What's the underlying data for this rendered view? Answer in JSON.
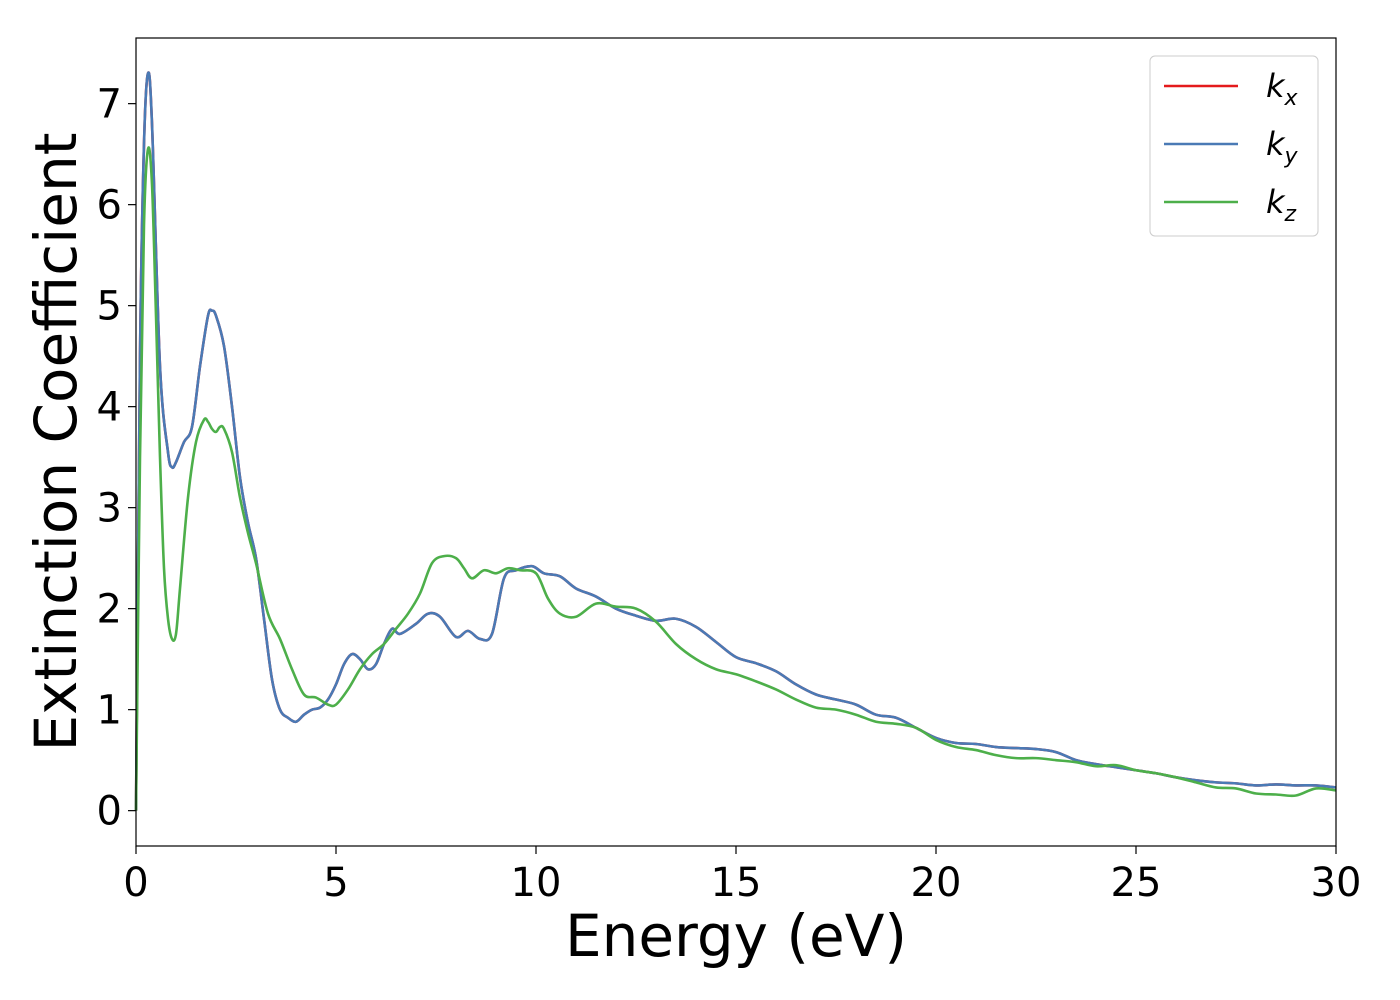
{
  "chart_data": {
    "type": "line",
    "title": "",
    "xlabel": "Energy (eV)",
    "ylabel": "Extinction Coefficient",
    "xlim": [
      0,
      30
    ],
    "ylim": [
      -0.35,
      7.65
    ],
    "xticks": [
      "0",
      "5",
      "10",
      "15",
      "20",
      "25",
      "30"
    ],
    "yticks": [
      "0",
      "1",
      "2",
      "3",
      "4",
      "5",
      "6",
      "7"
    ],
    "grid": false,
    "legend_position": "top-right",
    "series": [
      {
        "name": "k_x",
        "label_base": "k",
        "label_sub": "x",
        "color": "#e41a1c",
        "x": [
          0,
          0.1,
          0.2,
          0.3,
          0.4,
          0.6,
          0.8,
          0.9,
          1.0,
          1.2,
          1.4,
          1.6,
          1.8,
          1.9,
          2.0,
          2.2,
          2.4,
          2.6,
          2.8,
          3.0,
          3.2,
          3.4,
          3.6,
          3.8,
          4.0,
          4.2,
          4.4,
          4.6,
          4.8,
          5.0,
          5.2,
          5.4,
          5.6,
          5.8,
          6.0,
          6.2,
          6.4,
          6.6,
          7.0,
          7.3,
          7.6,
          8.0,
          8.3,
          8.6,
          8.9,
          9.2,
          9.5,
          9.9,
          10.2,
          10.6,
          11.0,
          11.5,
          12.0,
          12.5,
          13.0,
          13.5,
          14.0,
          14.5,
          15.0,
          15.5,
          16.0,
          16.5,
          17.0,
          17.5,
          18.0,
          18.5,
          19.0,
          19.5,
          20.0,
          20.5,
          21.0,
          21.5,
          22.0,
          22.5,
          23.0,
          23.5,
          24.0,
          24.5,
          25.0,
          25.5,
          26.0,
          26.5,
          27.0,
          27.5,
          28.0,
          28.5,
          29.0,
          29.5,
          30.0
        ],
        "y": [
          0,
          4.5,
          6.6,
          7.3,
          6.8,
          4.4,
          3.55,
          3.4,
          3.45,
          3.65,
          3.8,
          4.4,
          4.9,
          4.95,
          4.9,
          4.6,
          4.0,
          3.3,
          2.85,
          2.5,
          1.9,
          1.3,
          1.0,
          0.92,
          0.88,
          0.95,
          1.0,
          1.02,
          1.1,
          1.25,
          1.45,
          1.55,
          1.5,
          1.4,
          1.45,
          1.65,
          1.8,
          1.75,
          1.85,
          1.95,
          1.92,
          1.72,
          1.78,
          1.7,
          1.75,
          2.3,
          2.38,
          2.42,
          2.35,
          2.32,
          2.2,
          2.12,
          2.0,
          1.93,
          1.88,
          1.9,
          1.82,
          1.67,
          1.52,
          1.46,
          1.38,
          1.25,
          1.15,
          1.1,
          1.05,
          0.95,
          0.92,
          0.82,
          0.72,
          0.67,
          0.66,
          0.63,
          0.62,
          0.61,
          0.58,
          0.5,
          0.46,
          0.43,
          0.4,
          0.37,
          0.33,
          0.3,
          0.28,
          0.27,
          0.25,
          0.26,
          0.25,
          0.25,
          0.23
        ]
      },
      {
        "name": "k_y",
        "label_base": "k",
        "label_sub": "y",
        "color": "#4a7ab5",
        "x": [
          0,
          0.1,
          0.2,
          0.3,
          0.4,
          0.6,
          0.8,
          0.9,
          1.0,
          1.2,
          1.4,
          1.6,
          1.8,
          1.9,
          2.0,
          2.2,
          2.4,
          2.6,
          2.8,
          3.0,
          3.2,
          3.4,
          3.6,
          3.8,
          4.0,
          4.2,
          4.4,
          4.6,
          4.8,
          5.0,
          5.2,
          5.4,
          5.6,
          5.8,
          6.0,
          6.2,
          6.4,
          6.6,
          7.0,
          7.3,
          7.6,
          8.0,
          8.3,
          8.6,
          8.9,
          9.2,
          9.5,
          9.9,
          10.2,
          10.6,
          11.0,
          11.5,
          12.0,
          12.5,
          13.0,
          13.5,
          14.0,
          14.5,
          15.0,
          15.5,
          16.0,
          16.5,
          17.0,
          17.5,
          18.0,
          18.5,
          19.0,
          19.5,
          20.0,
          20.5,
          21.0,
          21.5,
          22.0,
          22.5,
          23.0,
          23.5,
          24.0,
          24.5,
          25.0,
          25.5,
          26.0,
          26.5,
          27.0,
          27.5,
          28.0,
          28.5,
          29.0,
          29.5,
          30.0
        ],
        "y": [
          0,
          4.5,
          6.6,
          7.3,
          6.8,
          4.4,
          3.55,
          3.4,
          3.45,
          3.65,
          3.8,
          4.4,
          4.9,
          4.95,
          4.9,
          4.6,
          4.0,
          3.3,
          2.85,
          2.5,
          1.9,
          1.3,
          1.0,
          0.92,
          0.88,
          0.95,
          1.0,
          1.02,
          1.1,
          1.25,
          1.45,
          1.55,
          1.5,
          1.4,
          1.45,
          1.65,
          1.8,
          1.75,
          1.85,
          1.95,
          1.92,
          1.72,
          1.78,
          1.7,
          1.75,
          2.3,
          2.38,
          2.42,
          2.35,
          2.32,
          2.2,
          2.12,
          2.0,
          1.93,
          1.88,
          1.9,
          1.82,
          1.67,
          1.52,
          1.46,
          1.38,
          1.25,
          1.15,
          1.1,
          1.05,
          0.95,
          0.92,
          0.82,
          0.72,
          0.67,
          0.66,
          0.63,
          0.62,
          0.61,
          0.58,
          0.5,
          0.46,
          0.43,
          0.4,
          0.37,
          0.33,
          0.3,
          0.28,
          0.27,
          0.25,
          0.26,
          0.25,
          0.25,
          0.23
        ]
      },
      {
        "name": "k_z",
        "label_base": "k",
        "label_sub": "z",
        "color": "#4daf4a",
        "x": [
          0,
          0.1,
          0.2,
          0.3,
          0.4,
          0.5,
          0.6,
          0.7,
          0.8,
          0.9,
          1.0,
          1.1,
          1.3,
          1.5,
          1.7,
          1.8,
          1.9,
          2.0,
          2.1,
          2.2,
          2.4,
          2.6,
          2.8,
          3.0,
          3.3,
          3.6,
          3.9,
          4.2,
          4.5,
          4.8,
          5.0,
          5.3,
          5.6,
          5.9,
          6.2,
          6.5,
          6.8,
          7.1,
          7.4,
          7.7,
          8.0,
          8.2,
          8.4,
          8.7,
          9.0,
          9.3,
          9.6,
          10.0,
          10.3,
          10.6,
          11.0,
          11.5,
          12.0,
          12.5,
          13.0,
          13.5,
          14.0,
          14.5,
          15.0,
          15.5,
          16.0,
          16.5,
          17.0,
          17.5,
          18.0,
          18.5,
          19.0,
          19.5,
          20.0,
          20.5,
          21.0,
          21.5,
          22.0,
          22.5,
          23.0,
          23.5,
          24.0,
          24.5,
          25.0,
          25.5,
          26.0,
          26.5,
          27.0,
          27.5,
          28.0,
          28.5,
          29.0,
          29.5,
          30.0
        ],
        "y": [
          0,
          3.5,
          5.8,
          6.55,
          6.2,
          4.9,
          3.5,
          2.4,
          1.9,
          1.7,
          1.75,
          2.2,
          3.1,
          3.65,
          3.87,
          3.85,
          3.78,
          3.75,
          3.8,
          3.78,
          3.55,
          3.1,
          2.75,
          2.45,
          1.95,
          1.7,
          1.4,
          1.15,
          1.12,
          1.05,
          1.05,
          1.2,
          1.4,
          1.55,
          1.65,
          1.8,
          1.95,
          2.15,
          2.45,
          2.52,
          2.5,
          2.4,
          2.3,
          2.38,
          2.35,
          2.4,
          2.38,
          2.35,
          2.1,
          1.95,
          1.92,
          2.05,
          2.02,
          2.0,
          1.87,
          1.65,
          1.5,
          1.4,
          1.35,
          1.28,
          1.2,
          1.1,
          1.02,
          1.0,
          0.95,
          0.88,
          0.86,
          0.82,
          0.7,
          0.63,
          0.6,
          0.55,
          0.52,
          0.52,
          0.5,
          0.48,
          0.44,
          0.45,
          0.4,
          0.37,
          0.33,
          0.28,
          0.23,
          0.22,
          0.17,
          0.16,
          0.15,
          0.22,
          0.2
        ]
      }
    ]
  }
}
